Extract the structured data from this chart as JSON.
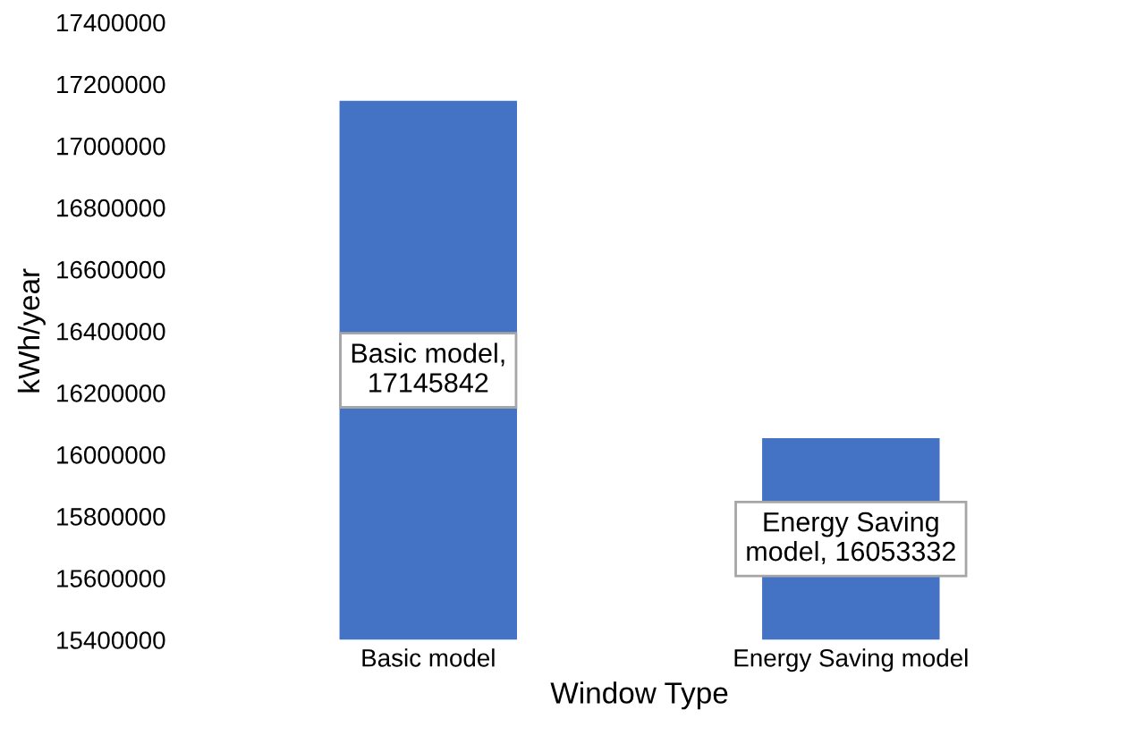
{
  "chart_data": {
    "type": "bar",
    "xlabel": "Window Type",
    "ylabel": "kWh/year",
    "categories": [
      "Basic model",
      "Energy Saving model"
    ],
    "values": [
      17145842,
      16053332
    ],
    "value_labels": [
      "Basic model,\n17145842",
      "Energy Saving\nmodel, 16053332"
    ],
    "color": "#4472c4",
    "ylim": [
      15400000,
      17400000
    ],
    "yticks": [
      15400000,
      15600000,
      15800000,
      16000000,
      16200000,
      16400000,
      16600000,
      16800000,
      17000000,
      17200000,
      17400000
    ],
    "grid": false
  }
}
